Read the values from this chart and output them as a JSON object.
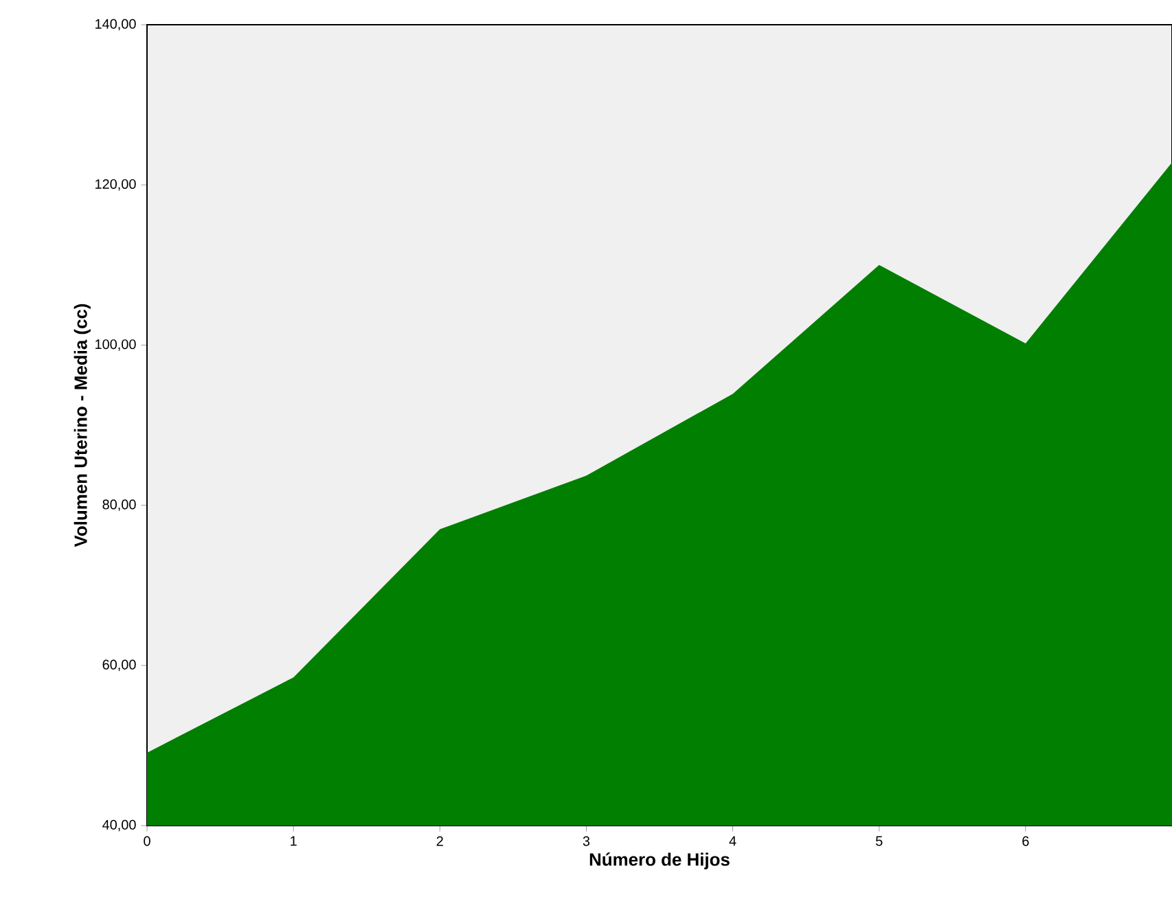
{
  "chart_data": {
    "type": "area",
    "xlabel": "Número de Hijos",
    "ylabel": "Volumen Uterino - Media (cc)",
    "categories": [
      "0",
      "1",
      "2",
      "3",
      "4",
      "5",
      "6",
      null
    ],
    "values": [
      49.1,
      58.5,
      77.0,
      83.7,
      93.9,
      110.0,
      100.2,
      122.8
    ],
    "color": "#007f00",
    "ylim": [
      40,
      140
    ],
    "yticks": [
      {
        "value": 40,
        "label": "40,00"
      },
      {
        "value": 60,
        "label": "60,00"
      },
      {
        "value": 80,
        "label": "80,00"
      },
      {
        "value": 100,
        "label": "100,00"
      },
      {
        "value": 120,
        "label": "120,00"
      },
      {
        "value": 140,
        "label": "140,00"
      }
    ],
    "grid": false
  }
}
